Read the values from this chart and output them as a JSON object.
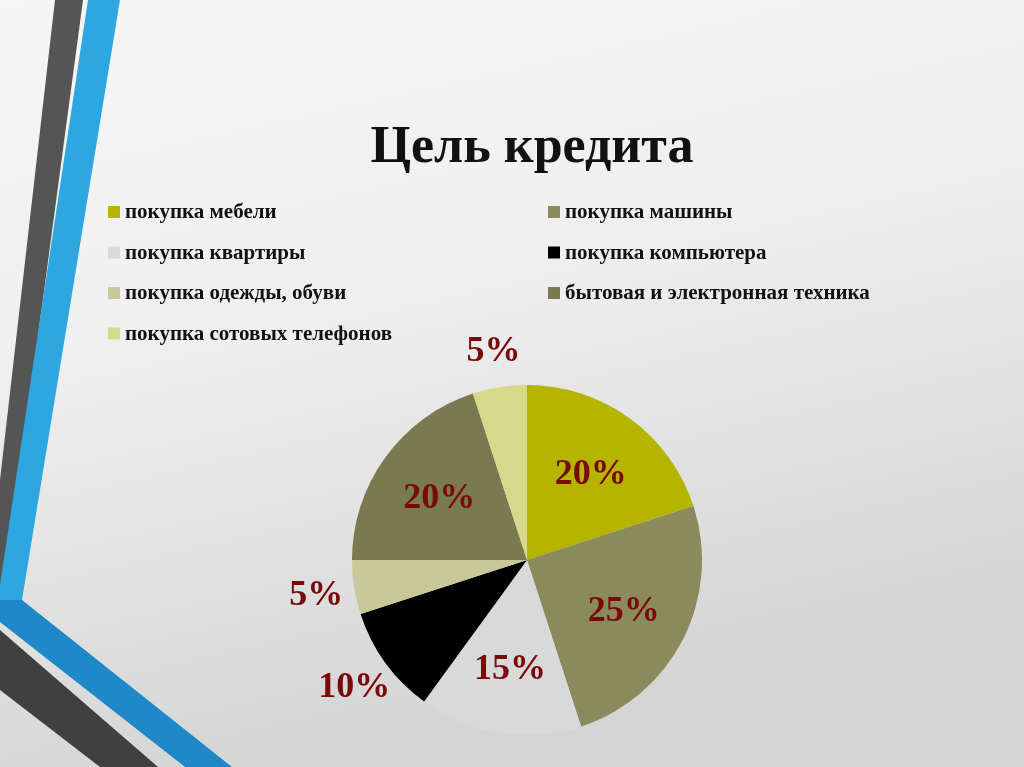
{
  "chart_data": {
    "type": "pie",
    "title": "Цель кредита",
    "categories": [
      "покупка мебели",
      "покупка машины",
      "покупка квартиры",
      "покупка компьютера",
      "покупка одежды, обуви",
      "бытовая и электронная техника",
      "покупка сотовых телефонов"
    ],
    "values": [
      20,
      25,
      15,
      10,
      5,
      20,
      5
    ],
    "colors": [
      "#b5b500",
      "#8a8a5c",
      "#d9d9d9",
      "#000000",
      "#c8c89a",
      "#7a7a50",
      "#d8d88a"
    ],
    "value_labels": [
      "20%",
      "25%",
      "15%",
      "10%",
      "5%",
      "20%",
      "5%"
    ],
    "legend": "top"
  }
}
